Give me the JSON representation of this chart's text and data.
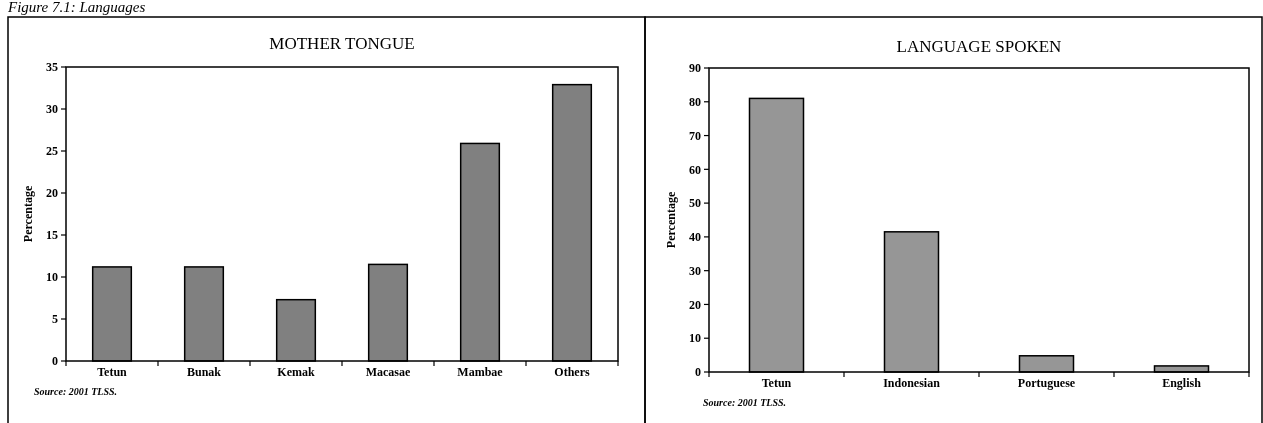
{
  "chart_data": [
    {
      "type": "bar",
      "title": "MOTHER TONGUE",
      "ylabel": "Percentage",
      "categories": [
        "Tetun",
        "Bunak",
        "Kemak",
        "Macasae",
        "Mambae",
        "Others"
      ],
      "values": [
        11.2,
        11.2,
        7.3,
        11.5,
        25.9,
        32.9
      ],
      "color": "#808080",
      "ylim": [
        0,
        35
      ],
      "yticks": [
        0,
        5,
        10,
        15,
        20,
        25,
        30,
        35
      ],
      "grid": false,
      "annotations": [
        "Figure 7.1: Languages",
        "Source: 2001 TLSS."
      ]
    },
    {
      "type": "bar",
      "title": "LANGUAGE SPOKEN",
      "ylabel": "Percentage",
      "categories": [
        "Tetun",
        "Indonesian",
        "Portuguese",
        "English"
      ],
      "values": [
        81,
        41.5,
        4.8,
        1.8
      ],
      "color": "#969696",
      "ylim": [
        0,
        90
      ],
      "yticks": [
        0,
        10,
        20,
        30,
        40,
        50,
        60,
        70,
        80,
        90
      ],
      "grid": false,
      "annotations": [
        "Source: 2001 TLSS."
      ]
    }
  ]
}
